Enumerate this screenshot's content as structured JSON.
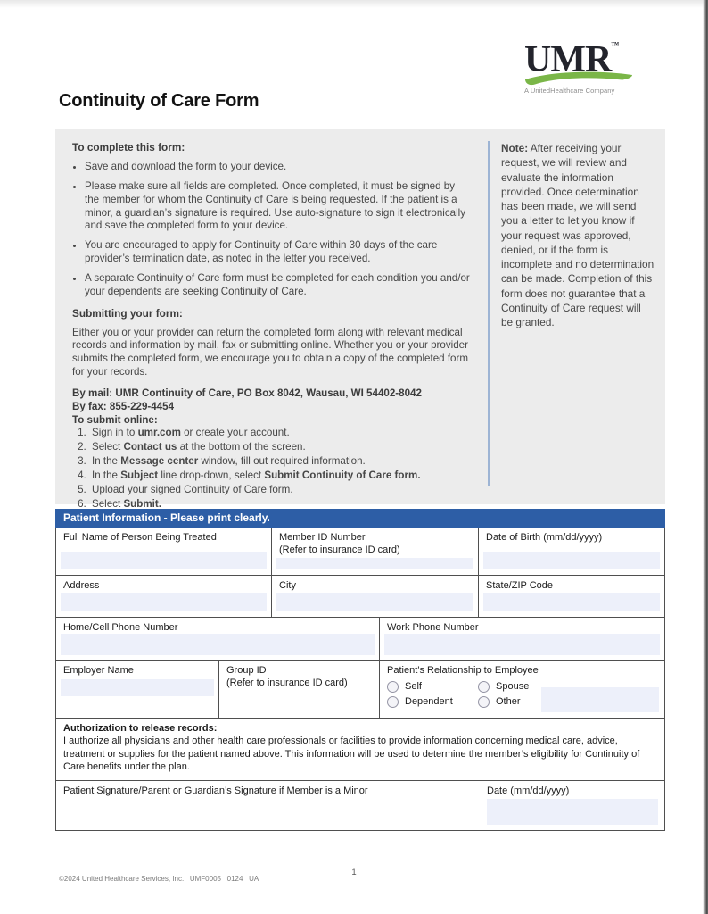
{
  "page": {
    "title": "Continuity of Care Form",
    "page_number": "1",
    "footer_text": "©2024 United Healthcare Services, Inc.   UMF0005   0124   UA"
  },
  "logo": {
    "text": "UMR",
    "trademark": "™",
    "tagline": "A UnitedHealthcare Company"
  },
  "colors": {
    "section_header_blue": "#2D5EA6",
    "input_field_blue": "#EDF0FA",
    "instruction_box_gray": "#ECECEC",
    "logo_green": "#7AB648",
    "logo_navy": "#23242C",
    "note_divider_blue": "#9DB4D4"
  },
  "instructions": {
    "complete_heading": "To complete this form:",
    "bullets": [
      "Save and download the form to your device.",
      "Please make sure all fields are completed. Once completed, it must be signed by the member for whom the Continuity of Care is being requested. If the patient is a minor, a guardian’s signature is required. Use auto-signature to sign it electronically and save the completed form to your device.",
      "You are encouraged to apply for Continuity of Care within 30 days of the care provider’s termination date, as noted in the letter you received.",
      "A separate Continuity of Care form must be completed for each condition you and/or your dependents are seeking Continuity of Care."
    ],
    "submitting_heading": "Submitting your form:",
    "submitting_text": "Either you or your provider can return the completed form along with relevant medical records and information by mail, fax or submitting online. Whether you or your provider submits the completed form, we encourage you to obtain a copy of the completed form for your records.",
    "by_mail": "By mail: UMR Continuity of Care, PO Box 8042, Wausau, WI 54402-8042",
    "by_fax": "By fax: 855-229-4454",
    "online_heading": "To submit online:",
    "online_steps": [
      [
        {
          "t": "Sign in to "
        },
        {
          "t": "umr.com",
          "b": true
        },
        {
          "t": " or create your account."
        }
      ],
      [
        {
          "t": "Select "
        },
        {
          "t": "Contact us",
          "b": true
        },
        {
          "t": " at the bottom of the screen."
        }
      ],
      [
        {
          "t": "In the "
        },
        {
          "t": "Message center",
          "b": true
        },
        {
          "t": " window, fill out required information."
        }
      ],
      [
        {
          "t": "In the "
        },
        {
          "t": "Subject",
          "b": true
        },
        {
          "t": " line drop-down, select "
        },
        {
          "t": "Submit Continuity of Care form.",
          "b": true
        }
      ],
      [
        {
          "t": "Upload your signed Continuity of Care form."
        }
      ],
      [
        {
          "t": "Select "
        },
        {
          "t": "Submit.",
          "b": true
        }
      ]
    ]
  },
  "note": {
    "segments": [
      {
        "t": "Note:",
        "b": true
      },
      {
        "t": " After receiving your request, we will review and evaluate the information provided. Once determination has been made, we will send you a letter to let you know if your request was approved, denied, or if the form is incomplete and no determination can be made. Completion of this form does not guarantee that a Continuity of Care request will be granted."
      }
    ]
  },
  "patient_info": {
    "header": "Patient Information - Please print clearly.",
    "fields": {
      "full_name": "Full Name of Person Being Treated",
      "member_id": "Member ID Number",
      "member_id_note": "(Refer to insurance ID card)",
      "dob": "Date of Birth (mm/dd/yyyy)",
      "address": "Address",
      "city": "City",
      "state_zip": "State/ZIP Code",
      "home_phone": "Home/Cell Phone Number",
      "work_phone": "Work Phone Number",
      "employer": "Employer Name",
      "group_id": "Group ID",
      "group_id_note": "(Refer to insurance ID card)"
    },
    "relationship": {
      "label": "Patient’s Relationship to Employee",
      "options": [
        "Self",
        "Spouse",
        "Dependent",
        "Other"
      ]
    },
    "authorization": {
      "heading": "Authorization to release records:",
      "text": "I authorize all physicians and other health care professionals or facilities to provide information concerning medical care, advice, treatment or supplies for the patient named above. This information will be used to determine the member’s eligibility for Continuity of Care benefits under the plan."
    },
    "signature_label": "Patient Signature/Parent or Guardian’s Signature if Member is a Minor",
    "date_label": "Date (mm/dd/yyyy)"
  }
}
